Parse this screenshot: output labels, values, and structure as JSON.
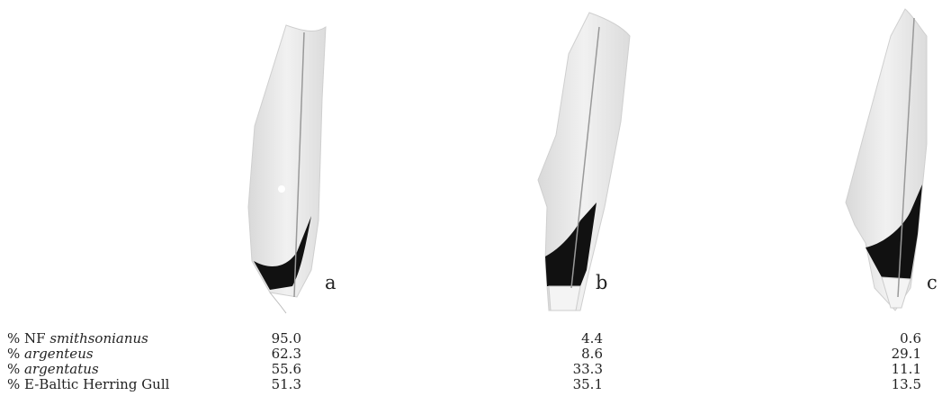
{
  "panels": [
    {
      "label": "a"
    },
    {
      "label": "b"
    },
    {
      "label": "c"
    }
  ],
  "table": {
    "rows": [
      {
        "prefix": "% NF ",
        "taxon": "smithsonianus",
        "values": [
          "95.0",
          "4.4",
          "0.6"
        ]
      },
      {
        "prefix": "% ",
        "taxon": "argenteus",
        "values": [
          "62.3",
          "8.6",
          "29.1"
        ]
      },
      {
        "prefix": "% ",
        "taxon": "argentatus",
        "values": [
          "55.6",
          "33.3",
          "11.1"
        ]
      },
      {
        "prefix": "% E-Baltic Herring Gull",
        "taxon": "",
        "values": [
          "51.3",
          "35.1",
          "13.5"
        ]
      }
    ]
  }
}
